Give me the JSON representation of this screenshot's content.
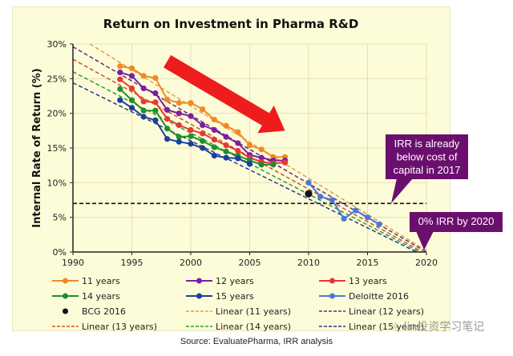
{
  "chart_data": {
    "type": "line",
    "title": "Return on Investment in Pharma R&D",
    "xlabel": "",
    "ylabel": "Internal Rate of Return (%)",
    "xlim": [
      1990,
      2020
    ],
    "ylim": [
      0,
      30
    ],
    "x_ticks": [
      "1990",
      "1995",
      "2000",
      "2005",
      "2010",
      "2015",
      "2020"
    ],
    "y_ticks": [
      "0%",
      "5%",
      "10%",
      "15%",
      "20%",
      "25%",
      "30%"
    ],
    "grid": true,
    "series": [
      {
        "name": "11 years",
        "color": "#f08a24",
        "x": [
          1994,
          1995,
          1996,
          1997,
          1998,
          1999,
          2000,
          2001,
          2002,
          2003,
          2004,
          2005,
          2006,
          2007,
          2008
        ],
        "values": [
          26.8,
          26.5,
          25.4,
          25.1,
          22.0,
          21.5,
          21.5,
          20.6,
          19.1,
          18.2,
          17.3,
          15.4,
          14.8,
          13.7,
          13.7
        ]
      },
      {
        "name": "12 years",
        "color": "#7b1fa2",
        "x": [
          1994,
          1995,
          1996,
          1997,
          1998,
          1999,
          2000,
          2001,
          2002,
          2003,
          2004,
          2005,
          2006,
          2007,
          2008
        ],
        "values": [
          25.9,
          25.4,
          23.6,
          22.9,
          20.5,
          20.0,
          19.6,
          18.3,
          17.6,
          16.6,
          15.7,
          14.0,
          13.6,
          13.2,
          13.2
        ]
      },
      {
        "name": "13 years",
        "color": "#e53935",
        "x": [
          1994,
          1995,
          1996,
          1997,
          1998,
          1999,
          2000,
          2001,
          2002,
          2003,
          2004,
          2005,
          2006,
          2007,
          2008
        ],
        "values": [
          24.9,
          23.6,
          21.7,
          21.6,
          19.2,
          18.3,
          17.6,
          17.1,
          16.2,
          15.4,
          14.6,
          13.6,
          13.0,
          12.8,
          12.9
        ]
      },
      {
        "name": "14 years",
        "color": "#1e8f2e",
        "x": [
          1994,
          1995,
          1996,
          1997,
          1998,
          1999,
          2000,
          2001,
          2002,
          2003,
          2004,
          2005,
          2006,
          2007
        ],
        "values": [
          23.5,
          21.9,
          20.4,
          20.4,
          17.8,
          16.6,
          16.7,
          16.0,
          15.1,
          14.5,
          13.9,
          13.2,
          12.6,
          12.6
        ]
      },
      {
        "name": "15 years",
        "color": "#1a3f9e",
        "x": [
          1994,
          1995,
          1996,
          1997,
          1998,
          1999,
          2000,
          2001,
          2002,
          2003,
          2004,
          2005
        ],
        "values": [
          21.9,
          20.8,
          19.5,
          19.0,
          16.3,
          15.9,
          15.6,
          15.0,
          13.9,
          13.6,
          13.5,
          12.7
        ]
      },
      {
        "name": "Deloitte 2016",
        "color": "#4a78d8",
        "x": [
          2010,
          2011,
          2012,
          2013,
          2014,
          2015,
          2016
        ],
        "values": [
          10.0,
          8.0,
          7.5,
          4.8,
          6.0,
          5.0,
          4.0
        ]
      }
    ],
    "points": [
      {
        "name": "BCG 2016",
        "color": "#111111",
        "x": 2010,
        "value": 8.4
      }
    ],
    "trendlines": [
      {
        "name": "Linear (11 years)",
        "color": "#e0a050",
        "start": [
          1990,
          31.5
        ],
        "end": [
          2020,
          0.2
        ]
      },
      {
        "name": "Linear (12 years)",
        "color": "#6a2a7a",
        "start": [
          1990,
          29.6
        ],
        "end": [
          2020,
          0.0
        ]
      },
      {
        "name": "Linear (13 years)",
        "color": "#d0503a",
        "start": [
          1990,
          27.8
        ],
        "end": [
          2020,
          -0.3
        ]
      },
      {
        "name": "Linear (14 years)",
        "color": "#2e9a3a",
        "start": [
          1990,
          26.0
        ],
        "end": [
          2020,
          -0.5
        ]
      },
      {
        "name": "Linear (15 years)",
        "color": "#2a3a8a",
        "start": [
          1990,
          24.4
        ],
        "end": [
          2020,
          -0.7
        ]
      }
    ],
    "reference_line": {
      "label": "cost of capital",
      "value": 7.0,
      "color": "#111111",
      "x_range": [
        1990,
        2020
      ]
    },
    "annotations": [
      {
        "text_lines": [
          "IRR is already",
          "below cost of",
          "capital in 2017"
        ],
        "color": "#6a0f6e",
        "points_to": [
          2017,
          7.0
        ]
      },
      {
        "text_lines": [
          "0% IRR by 2020"
        ],
        "color": "#6a0f6e",
        "points_to": [
          2019.8,
          0.3
        ]
      }
    ],
    "trend_arrow": {
      "color": "#ee1c1c",
      "from": [
        1998,
        27.5
      ],
      "to": [
        2008,
        17.5
      ]
    },
    "legend": {
      "placement": "bottom",
      "entries": [
        {
          "label": "11 years",
          "kind": "line-marker",
          "color": "#f08a24"
        },
        {
          "label": "12 years",
          "kind": "line-marker",
          "color": "#7b1fa2"
        },
        {
          "label": "13 years",
          "kind": "line-marker",
          "color": "#e53935"
        },
        {
          "label": "14 years",
          "kind": "line-marker",
          "color": "#1e8f2e"
        },
        {
          "label": "15 years",
          "kind": "line-marker",
          "color": "#1a3f9e"
        },
        {
          "label": "Deloitte 2016",
          "kind": "line-marker",
          "color": "#4a78d8"
        },
        {
          "label": "BCG 2016",
          "kind": "marker",
          "color": "#111111"
        },
        {
          "label": "Linear (11 years)",
          "kind": "dashed",
          "color": "#e0a050"
        },
        {
          "label": "Linear (12 years)",
          "kind": "dashed",
          "color": "#6a2a7a"
        },
        {
          "label": "Linear (13 years)",
          "kind": "dashed",
          "color": "#d0503a"
        },
        {
          "label": "Linear (14 years)",
          "kind": "dashed",
          "color": "#2e9a3a"
        },
        {
          "label": "Linear (15 years)",
          "kind": "dashed",
          "color": "#2a3a8a"
        }
      ]
    }
  },
  "source": "Source: EvaluatePharma,  IRR analysis",
  "watermark": "lin投资学习笔记"
}
